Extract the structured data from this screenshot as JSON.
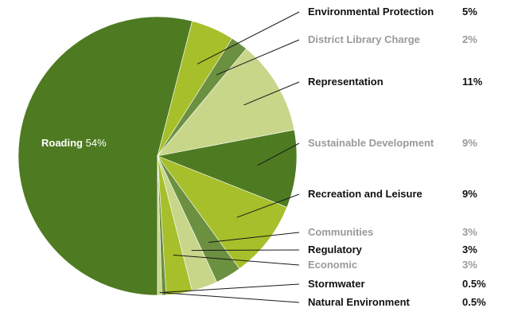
{
  "chart_data": {
    "type": "pie",
    "slices": [
      {
        "label": "Roading",
        "display": "54%",
        "value": 54,
        "color": "#4e7b22",
        "label_color": "#ffffff"
      },
      {
        "label": "Environmental Protection",
        "display": "5%",
        "value": 5,
        "color": "#a7bf2a",
        "label_color": "#111111"
      },
      {
        "label": "District Library Charge",
        "display": "2%",
        "value": 2,
        "color": "#6b9040",
        "label_color": "#9a9a9a"
      },
      {
        "label": "Representation",
        "display": "11%",
        "value": 11,
        "color": "#c8d68a",
        "label_color": "#111111"
      },
      {
        "label": "Sustainable Development",
        "display": "9%",
        "value": 9,
        "color": "#4e7b22",
        "label_color": "#9a9a9a"
      },
      {
        "label": "Recreation and Leisure",
        "display": "9%",
        "value": 9,
        "color": "#a7bf2a",
        "label_color": "#111111"
      },
      {
        "label": "Communities",
        "display": "3%",
        "value": 3,
        "color": "#6b9040",
        "label_color": "#9a9a9a"
      },
      {
        "label": "Regulatory",
        "display": "3%",
        "value": 3,
        "color": "#c8d68a",
        "label_color": "#111111"
      },
      {
        "label": "Economic",
        "display": "3%",
        "value": 3,
        "color": "#a7bf2a",
        "label_color": "#9a9a9a"
      },
      {
        "label": "Stormwater",
        "display": "0.5%",
        "value": 0.5,
        "color": "#6b9040",
        "label_color": "#111111"
      },
      {
        "label": "Natural Environment",
        "display": "0.5%",
        "value": 0.5,
        "color": "#c8d68a",
        "label_color": "#111111"
      }
    ],
    "start_angle_deg": 180,
    "direction": "clockwise",
    "legend": "right"
  }
}
